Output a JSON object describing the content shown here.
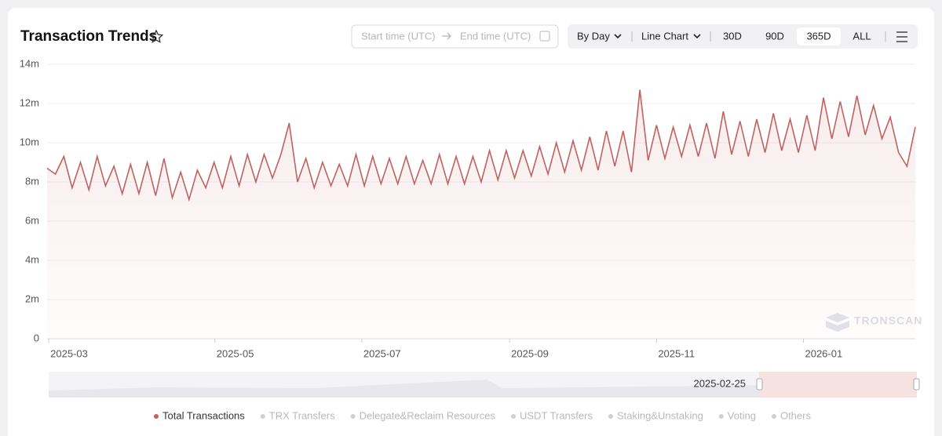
{
  "header": {
    "title": "Transaction Trends",
    "start_placeholder": "Start time (UTC)",
    "end_placeholder": "End time (UTC)",
    "granularity": "By Day",
    "chart_mode": "Line Chart",
    "ranges": [
      "30D",
      "90D",
      "365D",
      "ALL"
    ],
    "active_range": "365D"
  },
  "watermark": "TRONSCAN",
  "zoom": {
    "start_label": "2025-02-25"
  },
  "chart_data": {
    "type": "line",
    "series": [
      {
        "name": "Total Transactions",
        "color": "#c0625f",
        "values": [
          8.7,
          8.4,
          9.3,
          7.7,
          9.0,
          7.6,
          9.3,
          7.8,
          8.8,
          7.4,
          8.9,
          7.4,
          9.0,
          7.3,
          9.2,
          7.2,
          8.5,
          7.1,
          8.6,
          7.7,
          9.0,
          7.7,
          9.3,
          7.8,
          9.4,
          8.0,
          9.4,
          8.2,
          9.4,
          11.0,
          8.0,
          9.2,
          7.7,
          9.0,
          7.8,
          8.9,
          7.8,
          9.4,
          7.8,
          9.3,
          7.9,
          9.2,
          7.9,
          9.3,
          7.9,
          9.1,
          7.9,
          9.4,
          7.9,
          9.3,
          7.9,
          9.3,
          8.0,
          9.6,
          8.1,
          9.6,
          8.2,
          9.6,
          8.3,
          9.8,
          8.4,
          10.0,
          8.5,
          10.1,
          8.6,
          10.3,
          8.6,
          10.6,
          8.8,
          10.6,
          8.5,
          12.7,
          9.1,
          10.9,
          9.2,
          10.8,
          9.3,
          10.9,
          9.3,
          11.0,
          9.2,
          11.6,
          9.4,
          11.1,
          9.3,
          11.2,
          9.5,
          11.5,
          9.6,
          11.2,
          9.5,
          11.4,
          9.6,
          12.3,
          10.2,
          12.1,
          10.3,
          12.4,
          10.4,
          11.9,
          10.2,
          11.3,
          9.5,
          8.8,
          10.8
        ]
      }
    ],
    "hidden_series": [
      "TRX Transfers",
      "Delegate&Reclaim Resources",
      "USDT Transfers",
      "Staking&Unstaking",
      "Voting",
      "Others"
    ],
    "xlim": [
      0,
      104
    ],
    "xticks": [
      {
        "value": 0.2,
        "label": "2025-03"
      },
      {
        "value": 20.1,
        "label": "2025-05"
      },
      {
        "value": 37.7,
        "label": "2025-07"
      },
      {
        "value": 55.4,
        "label": "2025-09"
      },
      {
        "value": 73.0,
        "label": "2025-11"
      },
      {
        "value": 90.6,
        "label": "2026-01"
      }
    ],
    "ylim": [
      0,
      14
    ],
    "yticks": [
      0,
      {
        "value": 2,
        "label": "2m"
      },
      {
        "value": 4,
        "label": "4m"
      },
      {
        "value": 6,
        "label": "6m"
      },
      {
        "value": 8,
        "label": "8m"
      },
      {
        "value": 10,
        "label": "10m"
      },
      {
        "value": 12,
        "label": "12m"
      },
      {
        "value": 14,
        "label": "14m"
      }
    ],
    "grid": true
  }
}
